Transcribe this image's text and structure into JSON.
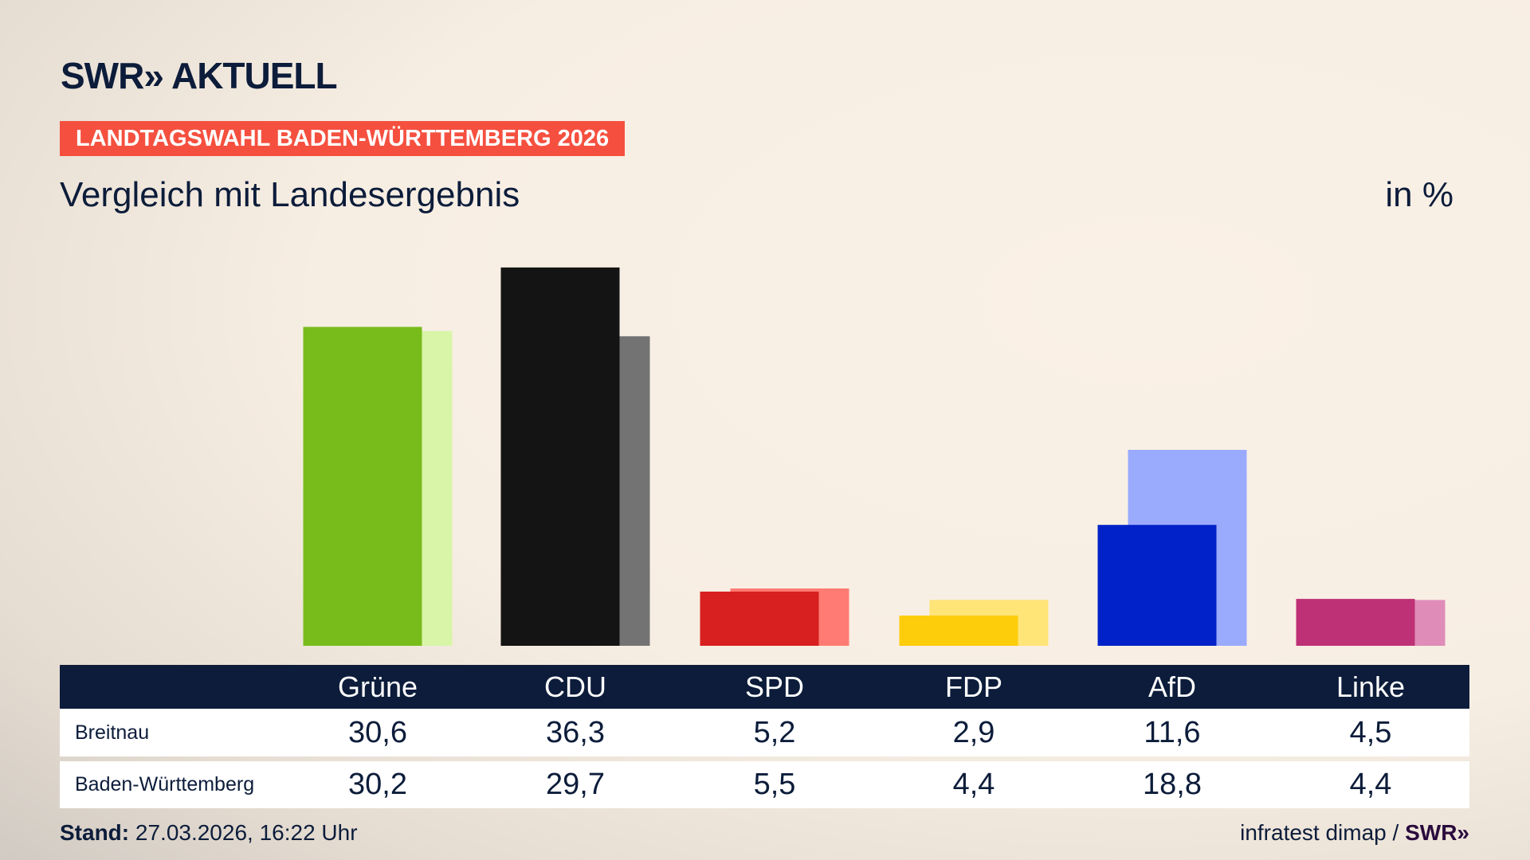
{
  "header": {
    "logo": "SWR» AKTUELL",
    "banner": "LANDTAGSWAHL BADEN-WÜRTTEMBERG 2026",
    "subtitle": "Vergleich mit Landesergebnis",
    "unit": "in %"
  },
  "colors": {
    "navy": "#0c1c3a",
    "banner": "#f5503f"
  },
  "chart_data": {
    "type": "bar",
    "categories": [
      "Grüne",
      "CDU",
      "SPD",
      "FDP",
      "AfD",
      "Linke"
    ],
    "series": [
      {
        "name": "Breitnau",
        "values": [
          30.6,
          36.3,
          5.2,
          2.9,
          11.6,
          4.5
        ],
        "colors": [
          "#78bc1b",
          "#141414",
          "#d7201f",
          "#fdcd0b",
          "#0022c8",
          "#be3176"
        ]
      },
      {
        "name": "Baden-Württemberg",
        "values": [
          30.2,
          29.7,
          5.5,
          4.4,
          18.8,
          4.4
        ],
        "colors": [
          "#d8f5a8",
          "#737373",
          "#ff7b73",
          "#ffe477",
          "#9aaafd",
          "#df8db8"
        ]
      }
    ],
    "ylim": [
      0,
      36.3
    ],
    "grid": false,
    "legend": "none"
  },
  "table": {
    "headers": [
      "Grüne",
      "CDU",
      "SPD",
      "FDP",
      "AfD",
      "Linke"
    ],
    "rows": [
      {
        "label": "Breitnau",
        "values": [
          "30,6",
          "36,3",
          "5,2",
          "2,9",
          "11,6",
          "4,5"
        ]
      },
      {
        "label": "Baden-Württemberg",
        "values": [
          "30,2",
          "29,7",
          "5,5",
          "4,4",
          "18,8",
          "4,4"
        ]
      }
    ]
  },
  "footer": {
    "stand_label": "Stand:",
    "stand_value": " 27.03.2026, 16:22 Uhr",
    "source": "infratest dimap / ",
    "source_logo": "SWR»"
  }
}
